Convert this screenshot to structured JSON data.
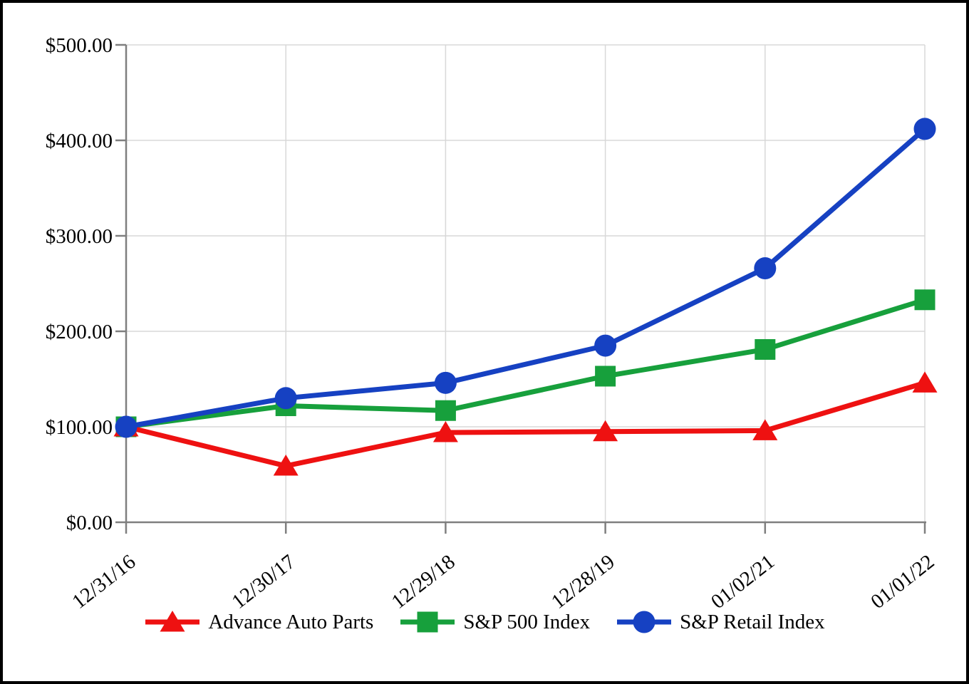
{
  "chart_data": {
    "type": "line",
    "categories": [
      "12/31/16",
      "12/30/17",
      "12/29/18",
      "12/28/19",
      "01/02/21",
      "01/01/22"
    ],
    "series": [
      {
        "name": "Advance Auto Parts",
        "marker": "triangle",
        "color": "#EE1111",
        "values": [
          100,
          59,
          94,
          95,
          96,
          146
        ]
      },
      {
        "name": "S&P 500 Index",
        "marker": "square",
        "color": "#17A03C",
        "values": [
          100,
          122,
          117,
          153,
          181,
          233
        ]
      },
      {
        "name": "S&P Retail Index",
        "marker": "circle",
        "color": "#1641C2",
        "values": [
          100,
          130,
          146,
          185,
          266,
          412
        ]
      }
    ],
    "draw_order": [
      1,
      0,
      2
    ],
    "y_axis": {
      "min": 0,
      "max": 500,
      "step": 100,
      "tick_labels": [
        "$0.00",
        "$100.00",
        "$200.00",
        "$300.00",
        "$400.00",
        "$500.00"
      ]
    },
    "x_axis": {
      "tick_labels": [
        "12/31/16",
        "12/30/17",
        "12/29/18",
        "12/28/19",
        "01/02/21",
        "01/01/22"
      ]
    },
    "grid": true,
    "legend_position": "bottom"
  }
}
